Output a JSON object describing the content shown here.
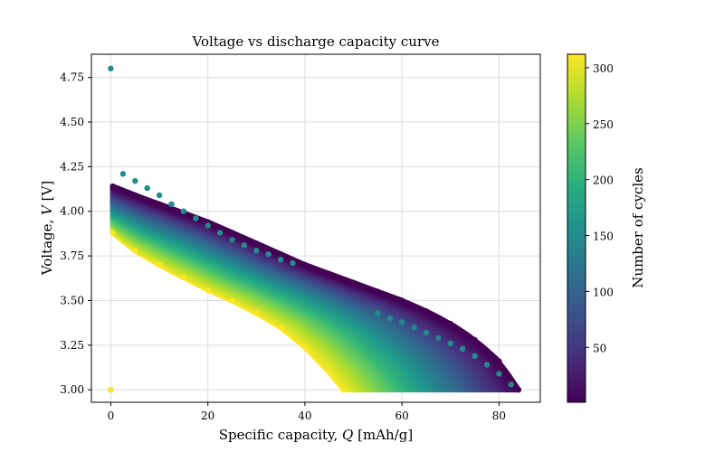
{
  "chart_data": {
    "type": "scatter",
    "title": "Voltage vs discharge capacity curve",
    "xlabel": "Specific capacity, Q [mAh/g]",
    "ylabel": "Voltage, V [V]",
    "xlim": [
      -4,
      88.5
    ],
    "ylim": [
      2.93,
      4.88
    ],
    "xticks": [
      "0",
      "20",
      "40",
      "60",
      "80"
    ],
    "yticks": [
      "3.00",
      "3.25",
      "3.50",
      "3.75",
      "4.00",
      "4.25",
      "4.50",
      "4.75"
    ],
    "grid": true,
    "colorbar": {
      "label": "Number of cycles",
      "range": [
        1,
        312
      ],
      "ticks": [
        "50",
        "100",
        "150",
        "200",
        "250",
        "300"
      ],
      "colormap": "viridis"
    },
    "series": [
      {
        "cycle": 1,
        "color_value": 1,
        "points": [
          [
            0,
            3.0
          ],
          [
            0.4,
            4.14
          ],
          [
            5,
            4.09
          ],
          [
            10,
            4.04
          ],
          [
            15,
            3.99
          ],
          [
            20,
            3.94
          ],
          [
            25,
            3.88
          ],
          [
            30,
            3.82
          ],
          [
            35,
            3.76
          ],
          [
            40,
            3.7
          ],
          [
            45,
            3.65
          ],
          [
            50,
            3.6
          ],
          [
            55,
            3.55
          ],
          [
            60,
            3.5
          ],
          [
            65,
            3.44
          ],
          [
            70,
            3.37
          ],
          [
            75,
            3.28
          ],
          [
            80,
            3.16
          ],
          [
            84,
            3.0
          ]
        ]
      },
      {
        "cycle": 150,
        "color_value": 150,
        "points": [
          [
            0,
            4.8
          ],
          [
            2.5,
            4.21
          ],
          [
            5,
            4.17
          ],
          [
            7.5,
            4.13
          ],
          [
            10,
            4.09
          ],
          [
            12.5,
            4.04
          ],
          [
            15,
            4.0
          ],
          [
            17.5,
            3.96
          ],
          [
            20,
            3.92
          ],
          [
            22.5,
            3.88
          ],
          [
            25,
            3.84
          ],
          [
            27.5,
            3.81
          ],
          [
            30,
            3.78
          ],
          [
            32.5,
            3.76
          ],
          [
            35,
            3.73
          ],
          [
            37.5,
            3.71
          ],
          [
            55,
            3.43
          ],
          [
            57.5,
            3.4
          ],
          [
            60,
            3.38
          ],
          [
            62.5,
            3.35
          ],
          [
            65,
            3.32
          ],
          [
            67.5,
            3.29
          ],
          [
            70,
            3.26
          ],
          [
            72.5,
            3.23
          ],
          [
            75,
            3.19
          ],
          [
            77.5,
            3.14
          ],
          [
            80,
            3.09
          ],
          [
            82.5,
            3.03
          ]
        ]
      },
      {
        "cycle": 312,
        "color_value": 312,
        "points": [
          [
            0,
            3.0
          ],
          [
            0.4,
            3.88
          ],
          [
            5,
            3.78
          ],
          [
            10,
            3.7
          ],
          [
            15,
            3.63
          ],
          [
            20,
            3.56
          ],
          [
            25,
            3.5
          ],
          [
            30,
            3.43
          ],
          [
            35,
            3.35
          ],
          [
            40,
            3.24
          ],
          [
            45,
            3.1
          ],
          [
            48,
            3.0
          ]
        ]
      }
    ]
  }
}
